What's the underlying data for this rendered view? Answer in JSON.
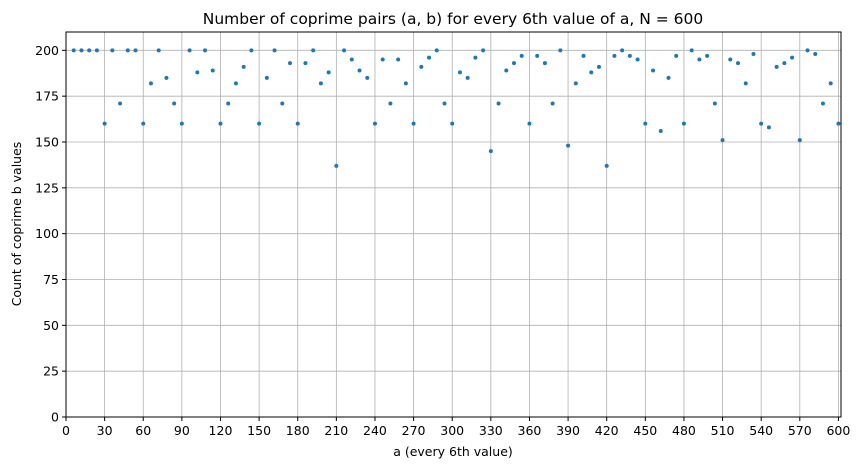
{
  "chart_data": {
    "type": "scatter",
    "title": "Number of coprime pairs (a, b) for every 6th value of a, N = 600",
    "xlabel": "a (every 6th value)",
    "ylabel": "Count of coprime b values",
    "xlim": [
      0,
      602
    ],
    "ylim": [
      0,
      210
    ],
    "grid": true,
    "legend": null,
    "marker_color": "#1f77b4",
    "xticks": [
      0,
      30,
      60,
      90,
      120,
      150,
      180,
      210,
      240,
      270,
      300,
      330,
      360,
      390,
      420,
      450,
      480,
      510,
      540,
      570,
      600
    ],
    "yticks": [
      0,
      25,
      50,
      75,
      100,
      125,
      150,
      175,
      200
    ],
    "x": [
      6,
      12,
      18,
      24,
      30,
      36,
      42,
      48,
      54,
      60,
      66,
      72,
      78,
      84,
      90,
      96,
      102,
      108,
      114,
      120,
      126,
      132,
      138,
      144,
      150,
      156,
      162,
      168,
      174,
      180,
      186,
      192,
      198,
      204,
      210,
      216,
      222,
      228,
      234,
      240,
      246,
      252,
      258,
      264,
      270,
      276,
      282,
      288,
      294,
      300,
      306,
      312,
      318,
      324,
      330,
      336,
      342,
      348,
      354,
      360,
      366,
      372,
      378,
      384,
      390,
      396,
      402,
      408,
      414,
      420,
      426,
      432,
      438,
      444,
      450,
      456,
      462,
      468,
      474,
      480,
      486,
      492,
      498,
      504,
      510,
      516,
      522,
      528,
      534,
      540,
      546,
      552,
      558,
      564,
      570,
      576,
      582,
      588,
      594,
      600
    ],
    "y": [
      200,
      200,
      200,
      200,
      160,
      200,
      171,
      200,
      200,
      160,
      182,
      200,
      185,
      171,
      160,
      200,
      188,
      200,
      189,
      160,
      171,
      182,
      191,
      200,
      160,
      185,
      200,
      171,
      193,
      160,
      193,
      200,
      182,
      188,
      137,
      200,
      195,
      189,
      185,
      160,
      195,
      171,
      195,
      182,
      160,
      191,
      196,
      200,
      171,
      160,
      188,
      185,
      196,
      200,
      145,
      171,
      189,
      193,
      197,
      160,
      197,
      193,
      171,
      200,
      148,
      182,
      197,
      188,
      191,
      137,
      197,
      200,
      197,
      195,
      160,
      189,
      156,
      185,
      197,
      160,
      200,
      195,
      197,
      171,
      151,
      195,
      193,
      182,
      198,
      160,
      158,
      191,
      193,
      196,
      151,
      200,
      198,
      171,
      182,
      160
    ]
  }
}
